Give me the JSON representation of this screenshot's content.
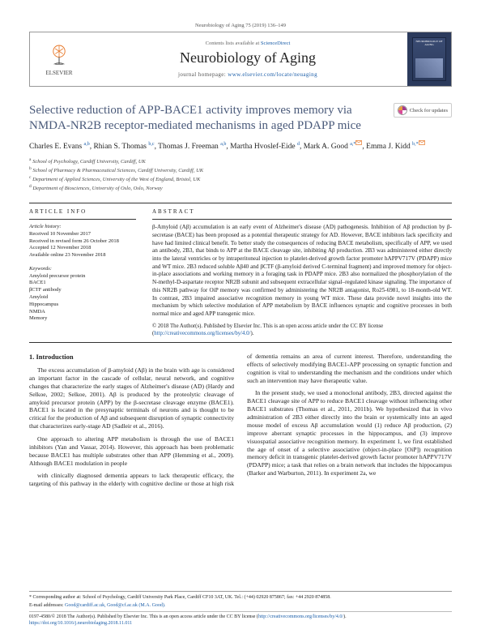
{
  "header": {
    "meta": "Neurobiology of Aging 75 (2019) 136–149",
    "contents_prefix": "Contents lists available at ",
    "contents_link": "ScienceDirect",
    "journal": "Neurobiology of Aging",
    "homepage_prefix": "journal homepage: ",
    "homepage_link": "www.elsevier.com/locate/neuaging",
    "publisher": "ELSEVIER"
  },
  "check_updates": "Check for updates",
  "title": "Selective reduction of APP-BACE1 activity improves memory via NMDA-NR2B receptor-mediated mechanisms in aged PDAPP mice",
  "authors_html": "Charles E. Evans",
  "authors": [
    {
      "name": "Charles E. Evans",
      "sup": "a,b"
    },
    {
      "name": "Rhian S. Thomas",
      "sup": "b,c"
    },
    {
      "name": "Thomas J. Freeman",
      "sup": "a,b"
    },
    {
      "name": "Martha Hvoslef-Eide",
      "sup": "d"
    },
    {
      "name": "Mark A. Good",
      "sup": "a,*"
    },
    {
      "name": "Emma J. Kidd",
      "sup": "b,*"
    }
  ],
  "affiliations": [
    {
      "sup": "a",
      "text": "School of Psychology, Cardiff University, Cardiff, UK"
    },
    {
      "sup": "b",
      "text": "School of Pharmacy & Pharmaceutical Sciences, Cardiff University, Cardiff, UK"
    },
    {
      "sup": "c",
      "text": "Department of Applied Sciences, University of the West of England, Bristol, UK"
    },
    {
      "sup": "d",
      "text": "Department of Biosciences, University of Oslo, Oslo, Norway"
    }
  ],
  "article_info": {
    "heading": "ARTICLE INFO",
    "history_label": "Article history:",
    "history": [
      "Received 10 November 2017",
      "Received in revised form 26 October 2018",
      "Accepted 12 November 2018",
      "Available online 23 November 2018"
    ],
    "keywords_label": "Keywords:",
    "keywords": [
      "Amyloid precursor protein",
      "BACE1",
      "βCTF antibody",
      "Amyloid",
      "Hippocampus",
      "NMDA",
      "Memory"
    ]
  },
  "abstract": {
    "heading": "ABSTRACT",
    "text": "β-Amyloid (Aβ) accumulation is an early event of Alzheimer's disease (AD) pathogenesis. Inhibition of Aβ production by β-secretase (BACE) has been proposed as a potential therapeutic strategy for AD. However, BACE inhibitors lack specificity and have had limited clinical benefit. To better study the consequences of reducing BACE metabolism, specifically of APP, we used an antibody, 2B3, that binds to APP at the BACE cleavage site, inhibiting Aβ production. 2B3 was administered either directly into the lateral ventricles or by intraperitoneal injection to platelet-derived growth factor promoter hAPPV717V (PDAPP) mice and WT mice. 2B3 reduced soluble Aβ40 and βCTF (β-amyloid derived C-terminal fragment) and improved memory for object-in-place associations and working memory in a foraging task in PDAPP mice. 2B3 also normalized the phosphorylation of the N-methyl-D-aspartate receptor NR2B subunit and subsequent extracellular signal–regulated kinase signaling. The importance of this NR2B pathway for OiP memory was confirmed by administering the NR2B antagonist, Ro25-6981, to 18-month-old WT. In contrast, 2B3 impaired associative recognition memory in young WT mice. These data provide novel insights into the mechanism by which selective modulation of APP metabolism by BACE influences synaptic and cognitive processes in both normal mice and aged APP transgenic mice.",
    "copyright": "© 2018 The Author(s). Published by Elsevier Inc. This is an open access article under the CC BY license (",
    "copyright_link": "http://creativecommons.org/licenses/by/4.0/",
    "copyright_close": ")."
  },
  "body": {
    "section_heading": "1. Introduction",
    "p1": "The excess accumulation of β-amyloid (Aβ) in the brain with age is considered an important factor in the cascade of cellular, neural network, and cognitive changes that characterize the early stages of Alzheimer's disease (AD) (Hardy and Selkoe, 2002; Selkoe, 2001). Aβ is produced by the proteolytic cleavage of amyloid precursor protein (APP) by the β-secretase cleavage enzyme (BACE1). BACE1 is located in the presynaptic terminals of neurons and is thought to be critical for the production of Aβ and subsequent disruption of synaptic connectivity that characterizes early-stage AD (Sadleir et al., 2016).",
    "p2": "One approach to altering APP metabolism is through the use of BACE1 inhibitors (Yan and Vassar, 2014). However, this approach has been problematic because BACE1 has multiple substrates other than APP (Hemming et al., 2009). Although BACE1 modulation in people",
    "p3": "with clinically diagnosed dementia appears to lack therapeutic efficacy, the targeting of this pathway in the elderly with cognitive decline or those at high risk of dementia remains an area of current interest. Therefore, understanding the effects of selectively modifying BACE1-APP processing on synaptic function and cognition is vital to understanding the mechanism and the conditions under which such an intervention may have therapeutic value.",
    "p4": "In the present study, we used a monoclonal antibody, 2B3, directed against the BACE1 cleavage site of APP to reduce BACE1 cleavage without influencing other BACE1 substrates (Thomas et al., 2011, 2011b). We hypothesized that in vivo administration of 2B3 either directly into the brain or systemically into an aged mouse model of excess Aβ accumulation would (1) reduce Aβ production, (2) improve aberrant synaptic processes in the hippocampus, and (3) improve visuospatial associative recognition memory. In experiment 1, we first established the age of onset of a selective associative (object-in-place [OiP]) recognition memory deficit in transgenic platelet-derived growth factor promoter hAPPV717V (PDAPP) mice; a task that relies on a brain network that includes the hippocampus (Barker and Warburton, 2011). In experiment 2a, we"
  },
  "footer": {
    "corr_label": "* Corresponding author at: School of Psychology, Cardiff University Park Place, Cardiff CF10 3AT, UK. Tel.: (+44) 02920 875867; fax: +44 2920 874858.",
    "emails_label": "E-mail addresses:",
    "emails": "Good@cardiff.ac.uk, Good@cf.ac.uk (M.A. Good).",
    "issn_line": "0197-4580/© 2018 The Author(s). Published by Elsevier Inc. This is an open access article under the CC BY license (",
    "issn_link": "http://creativecommons.org/licenses/by/4.0/",
    "issn_close": ").",
    "doi": "https://doi.org/10.1016/j.neurobiolaging.2018.11.011"
  },
  "colors": {
    "link": "#1a5da8",
    "title": "#4a5a7a",
    "rule": "#333333"
  }
}
